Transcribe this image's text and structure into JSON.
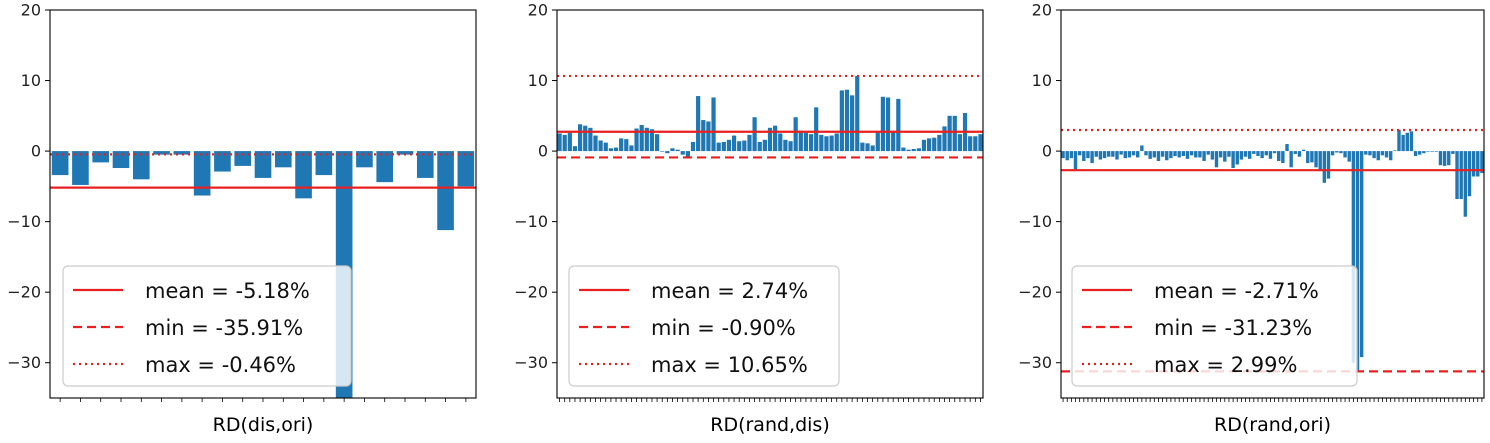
{
  "chart_data": [
    {
      "type": "bar",
      "xlabel": "RD(dis,ori)",
      "ylim": [
        -35,
        20
      ],
      "yticks": [
        20,
        10,
        0,
        -10,
        -20,
        -30
      ],
      "bar_color": "#1f77b4",
      "reference_lines": [
        {
          "label": "mean = -5.18%",
          "value": -5.18,
          "style": "solid",
          "color": "#e82020"
        },
        {
          "label": "min = -35.91%",
          "value": -35.91,
          "style": "dashed",
          "color": "#e82020"
        },
        {
          "label": "max = -0.46%",
          "value": -0.46,
          "style": "dotted",
          "color": "#e82020"
        }
      ],
      "legend_position": "lower-left",
      "values": [
        -3.4,
        -4.8,
        -1.6,
        -2.4,
        -4.0,
        -0.5,
        -0.5,
        -6.3,
        -2.9,
        -2.1,
        -3.8,
        -2.3,
        -6.7,
        -3.4,
        -35.91,
        -2.3,
        -4.4,
        -0.5,
        -3.8,
        -11.2,
        -5.0
      ]
    },
    {
      "type": "bar",
      "xlabel": "RD(rand,dis)",
      "ylim": [
        -35,
        20
      ],
      "yticks": [
        20,
        10,
        0,
        -10,
        -20,
        -30
      ],
      "bar_color": "#1f77b4",
      "reference_lines": [
        {
          "label": "mean = 2.74%",
          "value": 2.74,
          "style": "solid",
          "color": "#e82020"
        },
        {
          "label": "min = -0.90%",
          "value": -0.9,
          "style": "dashed",
          "color": "#e82020"
        },
        {
          "label": "max = 10.65%",
          "value": 10.65,
          "style": "dotted",
          "color": "#e82020"
        }
      ],
      "legend_position": "lower-left",
      "values": [
        2.5,
        2.3,
        2.6,
        0.7,
        3.8,
        3.6,
        3.3,
        2.2,
        1.5,
        1.2,
        0.4,
        0.5,
        1.8,
        1.7,
        0.8,
        3.2,
        3.7,
        3.3,
        3.1,
        2.4,
        0.0,
        -0.3,
        0.4,
        0.2,
        -0.5,
        -0.9,
        1.3,
        7.8,
        4.4,
        4.2,
        7.6,
        1.2,
        1.3,
        1.6,
        2.2,
        1.4,
        1.5,
        2.3,
        4.8,
        1.3,
        1.6,
        3.3,
        3.6,
        2.5,
        1.6,
        1.4,
        4.8,
        2.9,
        2.6,
        2.4,
        6.2,
        2.3,
        2.1,
        2.2,
        2.5,
        8.6,
        8.7,
        7.9,
        10.65,
        1.2,
        1.1,
        0.8,
        2.8,
        7.7,
        7.6,
        2.8,
        7.4,
        0.5,
        0.2,
        0.3,
        0.4,
        1.6,
        1.8,
        1.9,
        2.3,
        3.5,
        5.0,
        5.0,
        2.4,
        5.4,
        2.1,
        2.1,
        2.4
      ]
    },
    {
      "type": "bar",
      "xlabel": "RD(rand,ori)",
      "ylim": [
        -35,
        20
      ],
      "yticks": [
        20,
        10,
        0,
        -10,
        -20,
        -30
      ],
      "bar_color": "#1f77b4",
      "reference_lines": [
        {
          "label": "mean = -2.71%",
          "value": -2.71,
          "style": "solid",
          "color": "#e82020"
        },
        {
          "label": "min = -31.23%",
          "value": -31.23,
          "style": "dashed",
          "color": "#e82020"
        },
        {
          "label": "max = 2.99%",
          "value": 2.99,
          "style": "dotted",
          "color": "#e82020"
        }
      ],
      "legend_position": "lower-left",
      "values": [
        -1.0,
        -1.3,
        -1.0,
        -2.6,
        -0.6,
        -1.4,
        -1.0,
        -1.7,
        -0.8,
        -1.2,
        -1.0,
        -0.8,
        -0.8,
        -1.2,
        -0.5,
        -1.0,
        -0.9,
        -0.6,
        -0.9,
        0.8,
        -0.6,
        -1.1,
        -0.9,
        -1.4,
        -0.8,
        -1.3,
        -1.0,
        -0.7,
        -0.9,
        -0.7,
        -1.1,
        -0.6,
        -0.9,
        -0.9,
        -1.4,
        -0.5,
        -1.2,
        -2.3,
        -0.9,
        -1.5,
        -0.8,
        -2.4,
        -1.9,
        -1.2,
        -0.8,
        -1.1,
        -0.4,
        -0.7,
        -1.0,
        -0.6,
        -1.1,
        -0.3,
        -1.4,
        -1.7,
        1.0,
        -2.3,
        -0.4,
        -0.8,
        0.2,
        -1.7,
        -1.6,
        -2.3,
        -2.7,
        -4.5,
        -3.9,
        -0.6,
        -0.2,
        -0.3,
        -0.9,
        -1.5,
        -30.0,
        -31.23,
        -29.2,
        -0.5,
        -0.6,
        -1.0,
        -1.3,
        -0.6,
        -0.9,
        -1.3,
        0.1,
        2.99,
        2.3,
        2.6,
        2.8,
        -0.7,
        -0.5,
        -0.3,
        0.0,
        0.0,
        0.0,
        -2.0,
        -2.1,
        -2.0,
        -0.4,
        -6.8,
        -6.8,
        -9.3,
        -6.4,
        -3.6,
        -3.6,
        -3.1
      ]
    }
  ]
}
